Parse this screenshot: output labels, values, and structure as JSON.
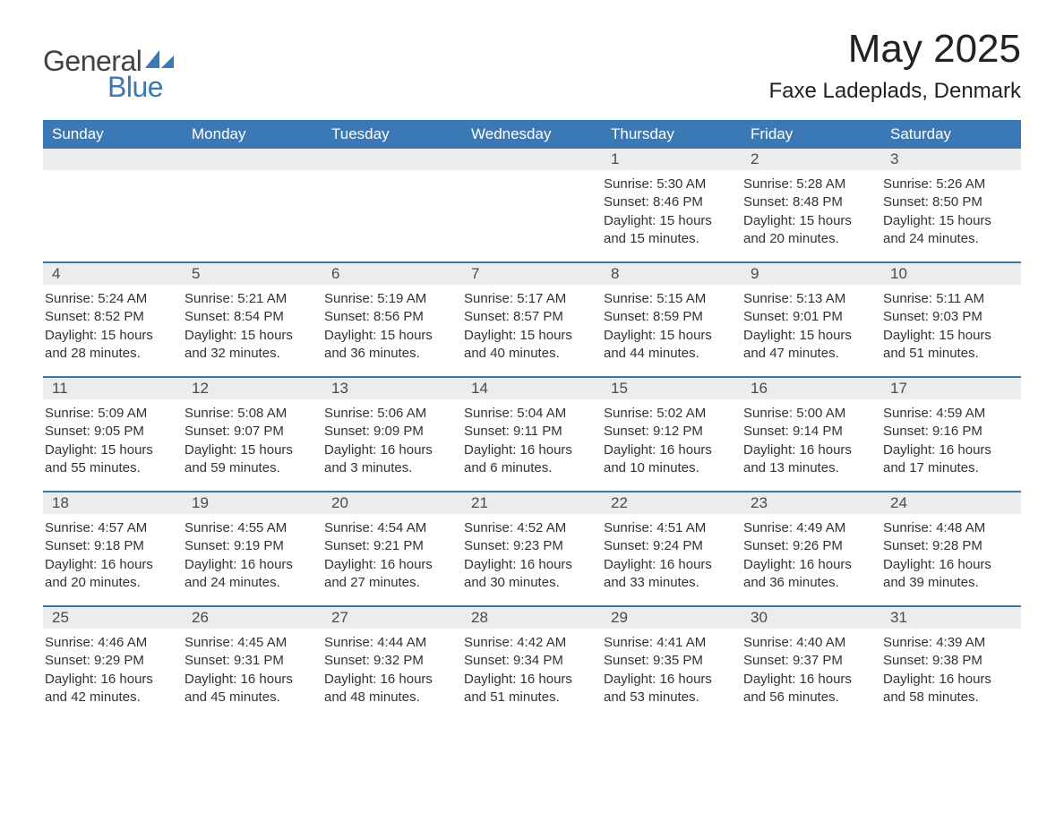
{
  "logo": {
    "text1": "General",
    "text2": "Blue",
    "sail_color": "#3a78b6",
    "text1_color": "#414141",
    "text2_color": "#3a78b6"
  },
  "title": "May 2025",
  "location": "Faxe Ladeplads, Denmark",
  "colors": {
    "header_bg": "#3a78b6",
    "header_text": "#ffffff",
    "daynum_bg": "#ececec",
    "daynum_text": "#4a4a4a",
    "body_text": "#333333",
    "row_border": "#3a78b6",
    "page_bg": "#ffffff"
  },
  "fonts": {
    "title_size": 44,
    "location_size": 24,
    "dow_size": 17,
    "daynum_size": 17,
    "body_size": 15
  },
  "days_of_week": [
    "Sunday",
    "Monday",
    "Tuesday",
    "Wednesday",
    "Thursday",
    "Friday",
    "Saturday"
  ],
  "weeks": [
    [
      {
        "empty": true
      },
      {
        "empty": true
      },
      {
        "empty": true
      },
      {
        "empty": true
      },
      {
        "num": "1",
        "sunrise": "Sunrise: 5:30 AM",
        "sunset": "Sunset: 8:46 PM",
        "daylight1": "Daylight: 15 hours",
        "daylight2": "and 15 minutes."
      },
      {
        "num": "2",
        "sunrise": "Sunrise: 5:28 AM",
        "sunset": "Sunset: 8:48 PM",
        "daylight1": "Daylight: 15 hours",
        "daylight2": "and 20 minutes."
      },
      {
        "num": "3",
        "sunrise": "Sunrise: 5:26 AM",
        "sunset": "Sunset: 8:50 PM",
        "daylight1": "Daylight: 15 hours",
        "daylight2": "and 24 minutes."
      }
    ],
    [
      {
        "num": "4",
        "sunrise": "Sunrise: 5:24 AM",
        "sunset": "Sunset: 8:52 PM",
        "daylight1": "Daylight: 15 hours",
        "daylight2": "and 28 minutes."
      },
      {
        "num": "5",
        "sunrise": "Sunrise: 5:21 AM",
        "sunset": "Sunset: 8:54 PM",
        "daylight1": "Daylight: 15 hours",
        "daylight2": "and 32 minutes."
      },
      {
        "num": "6",
        "sunrise": "Sunrise: 5:19 AM",
        "sunset": "Sunset: 8:56 PM",
        "daylight1": "Daylight: 15 hours",
        "daylight2": "and 36 minutes."
      },
      {
        "num": "7",
        "sunrise": "Sunrise: 5:17 AM",
        "sunset": "Sunset: 8:57 PM",
        "daylight1": "Daylight: 15 hours",
        "daylight2": "and 40 minutes."
      },
      {
        "num": "8",
        "sunrise": "Sunrise: 5:15 AM",
        "sunset": "Sunset: 8:59 PM",
        "daylight1": "Daylight: 15 hours",
        "daylight2": "and 44 minutes."
      },
      {
        "num": "9",
        "sunrise": "Sunrise: 5:13 AM",
        "sunset": "Sunset: 9:01 PM",
        "daylight1": "Daylight: 15 hours",
        "daylight2": "and 47 minutes."
      },
      {
        "num": "10",
        "sunrise": "Sunrise: 5:11 AM",
        "sunset": "Sunset: 9:03 PM",
        "daylight1": "Daylight: 15 hours",
        "daylight2": "and 51 minutes."
      }
    ],
    [
      {
        "num": "11",
        "sunrise": "Sunrise: 5:09 AM",
        "sunset": "Sunset: 9:05 PM",
        "daylight1": "Daylight: 15 hours",
        "daylight2": "and 55 minutes."
      },
      {
        "num": "12",
        "sunrise": "Sunrise: 5:08 AM",
        "sunset": "Sunset: 9:07 PM",
        "daylight1": "Daylight: 15 hours",
        "daylight2": "and 59 minutes."
      },
      {
        "num": "13",
        "sunrise": "Sunrise: 5:06 AM",
        "sunset": "Sunset: 9:09 PM",
        "daylight1": "Daylight: 16 hours",
        "daylight2": "and 3 minutes."
      },
      {
        "num": "14",
        "sunrise": "Sunrise: 5:04 AM",
        "sunset": "Sunset: 9:11 PM",
        "daylight1": "Daylight: 16 hours",
        "daylight2": "and 6 minutes."
      },
      {
        "num": "15",
        "sunrise": "Sunrise: 5:02 AM",
        "sunset": "Sunset: 9:12 PM",
        "daylight1": "Daylight: 16 hours",
        "daylight2": "and 10 minutes."
      },
      {
        "num": "16",
        "sunrise": "Sunrise: 5:00 AM",
        "sunset": "Sunset: 9:14 PM",
        "daylight1": "Daylight: 16 hours",
        "daylight2": "and 13 minutes."
      },
      {
        "num": "17",
        "sunrise": "Sunrise: 4:59 AM",
        "sunset": "Sunset: 9:16 PM",
        "daylight1": "Daylight: 16 hours",
        "daylight2": "and 17 minutes."
      }
    ],
    [
      {
        "num": "18",
        "sunrise": "Sunrise: 4:57 AM",
        "sunset": "Sunset: 9:18 PM",
        "daylight1": "Daylight: 16 hours",
        "daylight2": "and 20 minutes."
      },
      {
        "num": "19",
        "sunrise": "Sunrise: 4:55 AM",
        "sunset": "Sunset: 9:19 PM",
        "daylight1": "Daylight: 16 hours",
        "daylight2": "and 24 minutes."
      },
      {
        "num": "20",
        "sunrise": "Sunrise: 4:54 AM",
        "sunset": "Sunset: 9:21 PM",
        "daylight1": "Daylight: 16 hours",
        "daylight2": "and 27 minutes."
      },
      {
        "num": "21",
        "sunrise": "Sunrise: 4:52 AM",
        "sunset": "Sunset: 9:23 PM",
        "daylight1": "Daylight: 16 hours",
        "daylight2": "and 30 minutes."
      },
      {
        "num": "22",
        "sunrise": "Sunrise: 4:51 AM",
        "sunset": "Sunset: 9:24 PM",
        "daylight1": "Daylight: 16 hours",
        "daylight2": "and 33 minutes."
      },
      {
        "num": "23",
        "sunrise": "Sunrise: 4:49 AM",
        "sunset": "Sunset: 9:26 PM",
        "daylight1": "Daylight: 16 hours",
        "daylight2": "and 36 minutes."
      },
      {
        "num": "24",
        "sunrise": "Sunrise: 4:48 AM",
        "sunset": "Sunset: 9:28 PM",
        "daylight1": "Daylight: 16 hours",
        "daylight2": "and 39 minutes."
      }
    ],
    [
      {
        "num": "25",
        "sunrise": "Sunrise: 4:46 AM",
        "sunset": "Sunset: 9:29 PM",
        "daylight1": "Daylight: 16 hours",
        "daylight2": "and 42 minutes."
      },
      {
        "num": "26",
        "sunrise": "Sunrise: 4:45 AM",
        "sunset": "Sunset: 9:31 PM",
        "daylight1": "Daylight: 16 hours",
        "daylight2": "and 45 minutes."
      },
      {
        "num": "27",
        "sunrise": "Sunrise: 4:44 AM",
        "sunset": "Sunset: 9:32 PM",
        "daylight1": "Daylight: 16 hours",
        "daylight2": "and 48 minutes."
      },
      {
        "num": "28",
        "sunrise": "Sunrise: 4:42 AM",
        "sunset": "Sunset: 9:34 PM",
        "daylight1": "Daylight: 16 hours",
        "daylight2": "and 51 minutes."
      },
      {
        "num": "29",
        "sunrise": "Sunrise: 4:41 AM",
        "sunset": "Sunset: 9:35 PM",
        "daylight1": "Daylight: 16 hours",
        "daylight2": "and 53 minutes."
      },
      {
        "num": "30",
        "sunrise": "Sunrise: 4:40 AM",
        "sunset": "Sunset: 9:37 PM",
        "daylight1": "Daylight: 16 hours",
        "daylight2": "and 56 minutes."
      },
      {
        "num": "31",
        "sunrise": "Sunrise: 4:39 AM",
        "sunset": "Sunset: 9:38 PM",
        "daylight1": "Daylight: 16 hours",
        "daylight2": "and 58 minutes."
      }
    ]
  ]
}
